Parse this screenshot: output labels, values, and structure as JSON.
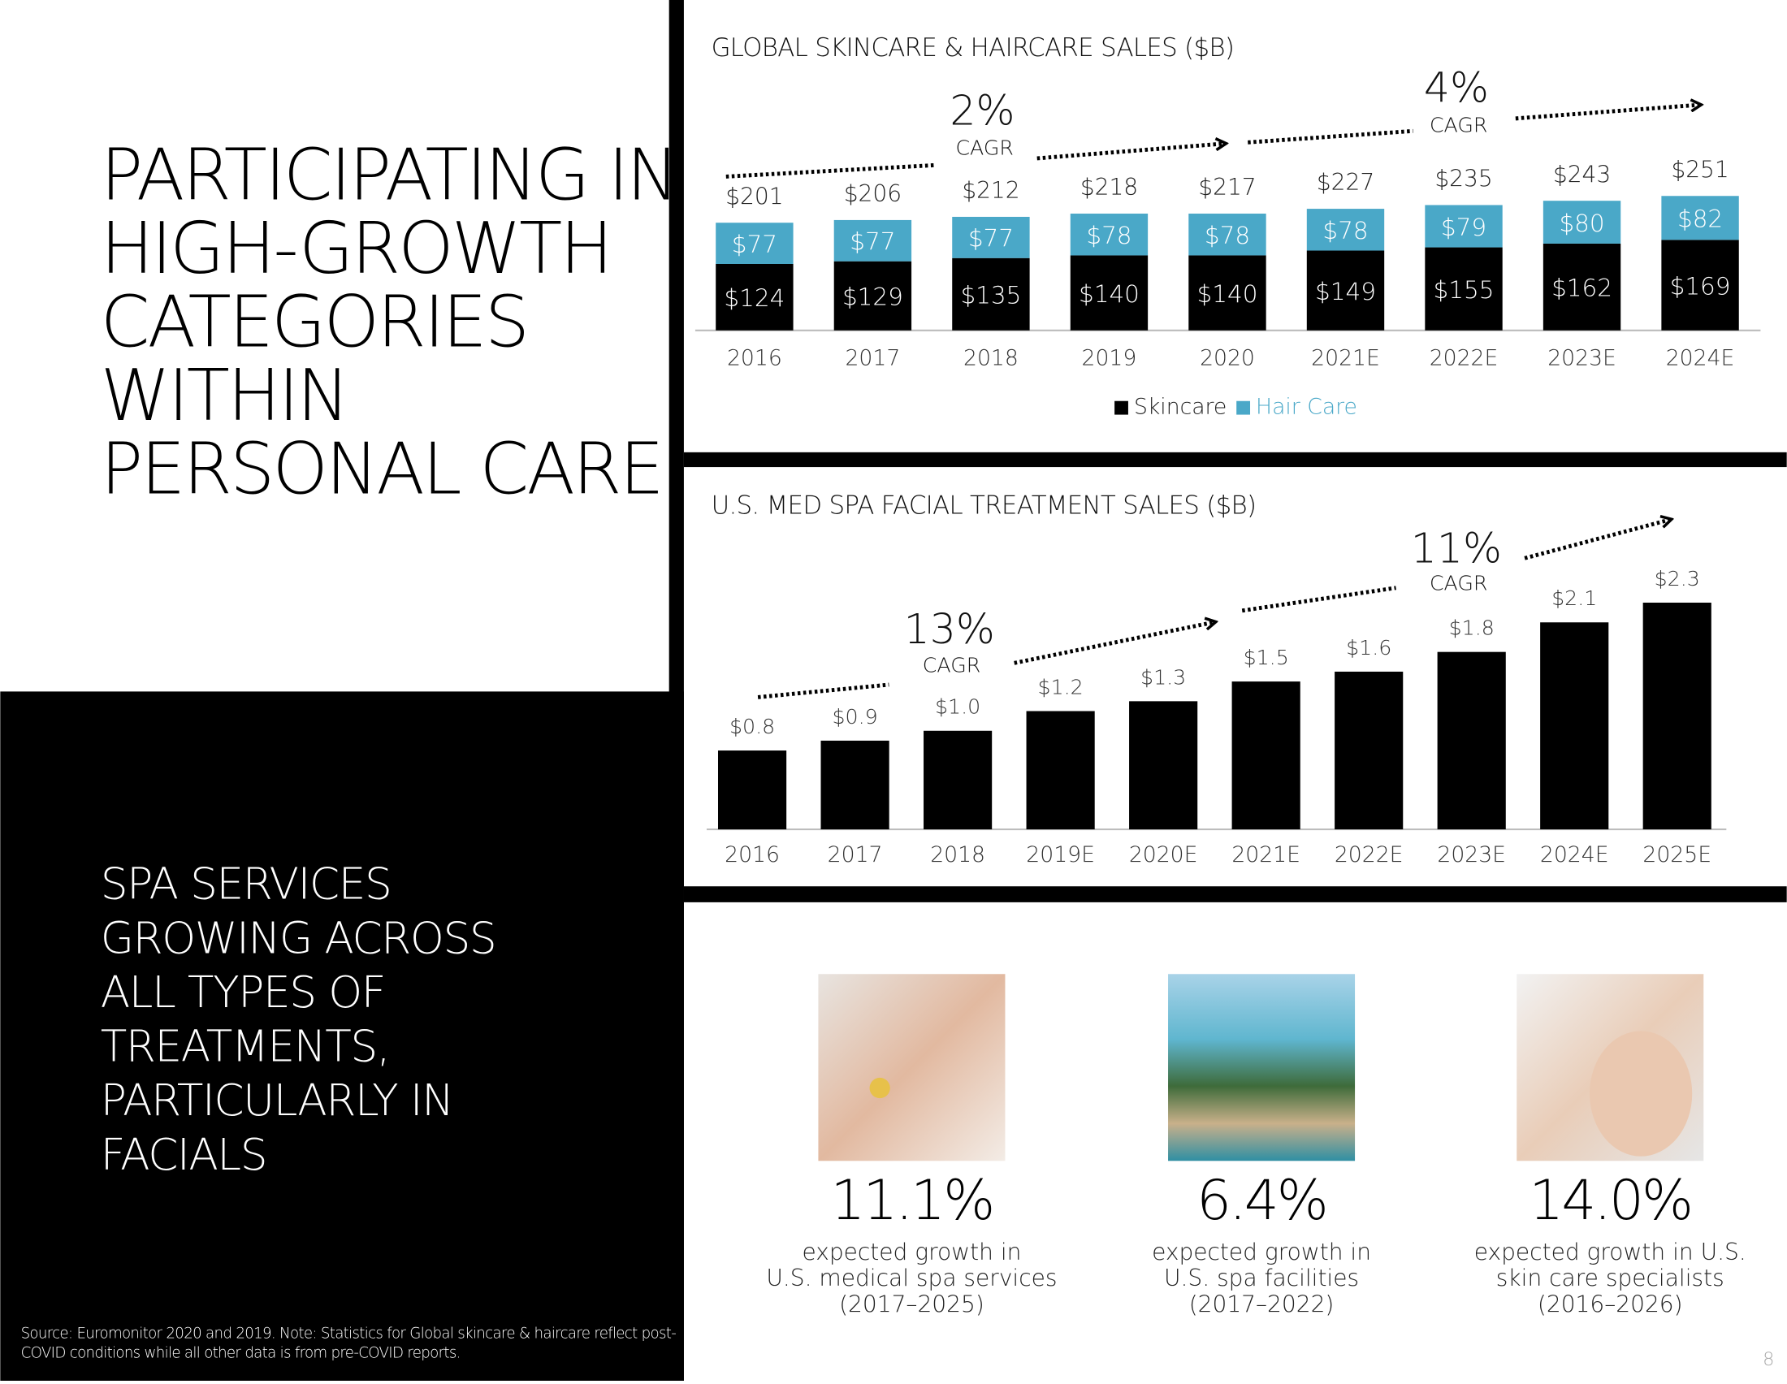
{
  "title": [
    "PARTICIPATING IN",
    "HIGH-GROWTH",
    "CATEGORIES",
    "WITHIN",
    "PERSONAL CARE"
  ],
  "subtitle": [
    "SPA SERVICES",
    "GROWING ACROSS",
    "ALL TYPES OF",
    "TREATMENTS,",
    "PARTICULARLY IN",
    "FACIALS"
  ],
  "chart_data": [
    {
      "type": "stacked-bar",
      "title": "GLOBAL SKINCARE & HAIRCARE SALES ($B)",
      "categories": [
        "2016",
        "2017",
        "2018",
        "2019",
        "2020",
        "2021E",
        "2022E",
        "2023E",
        "2024E"
      ],
      "series": [
        {
          "name": "Skincare",
          "color": "#000000",
          "values": [
            124,
            129,
            135,
            140,
            140,
            149,
            155,
            162,
            169
          ],
          "value_labels": [
            "$124",
            "$129",
            "$135",
            "$140",
            "$140",
            "$149",
            "$155",
            "$162",
            "$169"
          ]
        },
        {
          "name": "Hair Care",
          "color": "#4aa8c8",
          "values": [
            77,
            77,
            77,
            78,
            78,
            78,
            79,
            80,
            82
          ],
          "value_labels": [
            "$77",
            "$77",
            "$77",
            "$78",
            "$78",
            "$78",
            "$79",
            "$80",
            "$82"
          ]
        }
      ],
      "total_labels": [
        "$201",
        "$206",
        "$212",
        "$218",
        "$217",
        "$227",
        "$235",
        "$243",
        "$251"
      ],
      "annotations": [
        "2%",
        "CAGR",
        "4%",
        "CAGR"
      ],
      "legend": "bottom"
    },
    {
      "type": "bar",
      "title": "U.S. MED SPA FACIAL TREATMENT SALES ($B)",
      "categories": [
        "2016",
        "2017",
        "2018",
        "2019E",
        "2020E",
        "2021E",
        "2022E",
        "2023E",
        "2024E",
        "2025E"
      ],
      "values": [
        0.8,
        0.9,
        1.0,
        1.2,
        1.3,
        1.5,
        1.6,
        1.8,
        2.1,
        2.3
      ],
      "value_labels": [
        "$0.8",
        "$0.9",
        "$1.0",
        "$1.2",
        "$1.3",
        "$1.5",
        "$1.6",
        "$1.8",
        "$2.1",
        "$2.3"
      ],
      "color": "#000000",
      "annotations": [
        "13%",
        "CAGR",
        "11%",
        "CAGR"
      ]
    }
  ],
  "stats": [
    {
      "figure": "11.1%",
      "lines": [
        "expected growth in",
        "U.S. medical spa services",
        "(2017–2025)"
      ]
    },
    {
      "figure": "6.4%",
      "lines": [
        "expected growth in",
        "U.S. spa facilities",
        "(2017–2022)"
      ]
    },
    {
      "figure": "14.0%",
      "lines": [
        "expected growth in U.S.",
        "skin care specialists",
        "(2016–2026)"
      ]
    }
  ],
  "source": [
    "Source: Euromonitor 2020 and 2019. Note: Statistics for Global skincare & haircare reflect post-",
    "COVID conditions while all other data is from pre-COVID reports."
  ],
  "page_number": "8"
}
